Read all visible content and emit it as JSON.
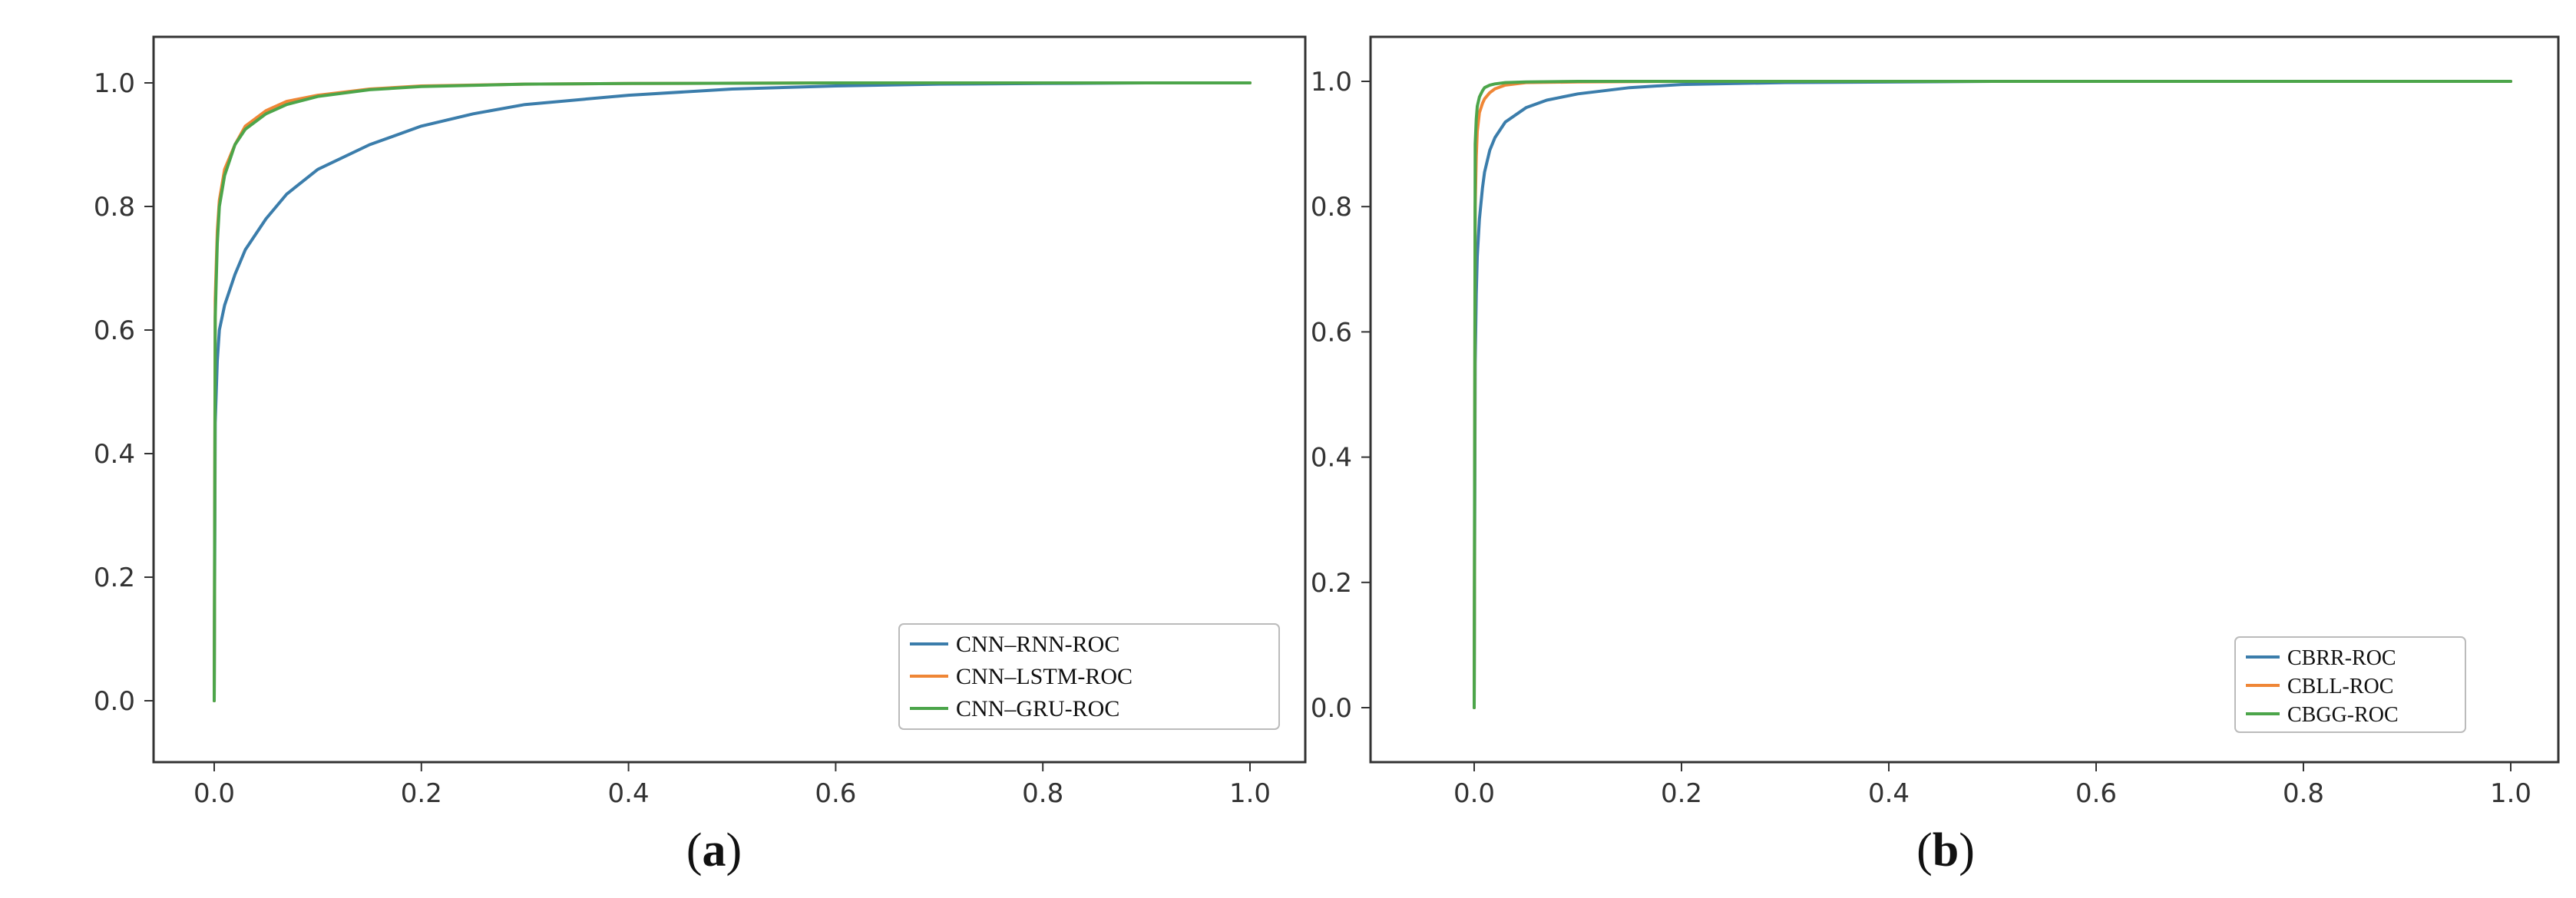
{
  "figure": {
    "labels": [
      {
        "open": "(",
        "letter": "a",
        "close": ")"
      },
      {
        "open": "(",
        "letter": "b",
        "close": ")"
      }
    ]
  },
  "chart_data": [
    {
      "type": "line",
      "title": "",
      "xlabel": "",
      "ylabel": "",
      "xlim": [
        0.0,
        1.0
      ],
      "ylim": [
        0.0,
        1.0
      ],
      "x_ticks": [
        "0.0",
        "0.2",
        "0.4",
        "0.6",
        "0.8",
        "1.0"
      ],
      "y_ticks": [
        "0.0",
        "0.2",
        "0.4",
        "0.6",
        "0.8",
        "1.0"
      ],
      "grid": false,
      "legend_position": "bottom-right",
      "series": [
        {
          "name": "CNN–RNN-ROC",
          "color": "#3b7dab",
          "x": [
            0,
            0.001,
            0.003,
            0.005,
            0.01,
            0.02,
            0.03,
            0.05,
            0.07,
            0.1,
            0.15,
            0.2,
            0.25,
            0.3,
            0.4,
            0.5,
            0.6,
            0.7,
            0.8,
            0.9,
            1.0
          ],
          "y": [
            0,
            0.45,
            0.55,
            0.6,
            0.64,
            0.69,
            0.73,
            0.78,
            0.82,
            0.86,
            0.9,
            0.93,
            0.95,
            0.965,
            0.98,
            0.99,
            0.995,
            0.998,
            0.999,
            1.0,
            1.0
          ]
        },
        {
          "name": "CNN–LSTM-ROC",
          "color": "#ef8636",
          "x": [
            0,
            0.001,
            0.003,
            0.005,
            0.01,
            0.02,
            0.03,
            0.05,
            0.07,
            0.1,
            0.15,
            0.2,
            0.3,
            0.4,
            0.6,
            1.0
          ],
          "y": [
            0,
            0.65,
            0.76,
            0.81,
            0.86,
            0.9,
            0.93,
            0.955,
            0.97,
            0.98,
            0.99,
            0.995,
            0.998,
            0.999,
            1.0,
            1.0
          ]
        },
        {
          "name": "CNN–GRU-ROC",
          "color": "#4ca54a",
          "x": [
            0,
            0.001,
            0.003,
            0.005,
            0.01,
            0.02,
            0.03,
            0.05,
            0.07,
            0.1,
            0.15,
            0.2,
            0.3,
            0.4,
            0.6,
            1.0
          ],
          "y": [
            0,
            0.62,
            0.74,
            0.8,
            0.85,
            0.9,
            0.925,
            0.95,
            0.965,
            0.978,
            0.989,
            0.994,
            0.998,
            0.999,
            1.0,
            1.0
          ]
        }
      ]
    },
    {
      "type": "line",
      "title": "",
      "xlabel": "",
      "ylabel": "",
      "xlim": [
        0.0,
        1.0
      ],
      "ylim": [
        0.0,
        1.0
      ],
      "x_ticks": [
        "0.0",
        "0.2",
        "0.4",
        "0.6",
        "0.8",
        "1.0"
      ],
      "y_ticks": [
        "0.0",
        "0.2",
        "0.4",
        "0.6",
        "0.8",
        "1.0"
      ],
      "grid": false,
      "legend_position": "bottom-right",
      "series": [
        {
          "name": "CBRR-ROC",
          "color": "#3b7dab",
          "x": [
            0,
            0.001,
            0.002,
            0.003,
            0.005,
            0.008,
            0.01,
            0.015,
            0.02,
            0.03,
            0.05,
            0.07,
            0.1,
            0.15,
            0.2,
            0.3,
            0.5,
            1.0
          ],
          "y": [
            0,
            0.55,
            0.66,
            0.72,
            0.78,
            0.83,
            0.855,
            0.89,
            0.91,
            0.935,
            0.958,
            0.97,
            0.98,
            0.99,
            0.995,
            0.998,
            1.0,
            1.0
          ]
        },
        {
          "name": "CBLL-ROC",
          "color": "#ef8636",
          "x": [
            0,
            0.001,
            0.002,
            0.003,
            0.005,
            0.008,
            0.01,
            0.015,
            0.02,
            0.03,
            0.05,
            0.1,
            0.2,
            1.0
          ],
          "y": [
            0,
            0.8,
            0.88,
            0.92,
            0.95,
            0.965,
            0.972,
            0.982,
            0.988,
            0.994,
            0.998,
            0.999,
            1.0,
            1.0
          ]
        },
        {
          "name": "CBGG-ROC",
          "color": "#4ca54a",
          "x": [
            0,
            0.001,
            0.002,
            0.003,
            0.005,
            0.008,
            0.01,
            0.015,
            0.02,
            0.03,
            0.05,
            0.1,
            0.2,
            1.0
          ],
          "y": [
            0,
            0.9,
            0.94,
            0.96,
            0.975,
            0.985,
            0.99,
            0.994,
            0.996,
            0.998,
            0.999,
            1.0,
            1.0,
            1.0
          ]
        }
      ]
    }
  ]
}
